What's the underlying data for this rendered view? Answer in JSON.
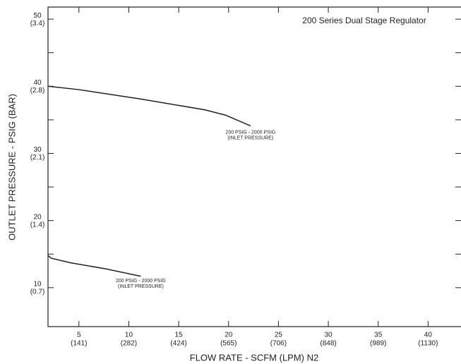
{
  "chart_data": {
    "type": "line",
    "title": "200 Series Dual Stage Regulator",
    "title_color": "#a51c4a",
    "x_label": "FLOW RATE - SCFM (LPM) N2",
    "y_label": "OUTLET PRESSURE - PSIG (BAR)",
    "xlim": [
      1.9,
      43.3
    ],
    "ylim": [
      4.2,
      51.8
    ],
    "xticks": [
      5,
      10,
      15,
      20,
      25,
      30,
      35,
      40
    ],
    "xtick_sublabels": [
      "(141)",
      "(282)",
      "(424)",
      "(565)",
      "(706)",
      "(848)",
      "(989)",
      "(1130)"
    ],
    "yticks": [
      10,
      20,
      30,
      40,
      50
    ],
    "ytick_sublabels": [
      "(0.7)",
      "(1.4)",
      "(2.1)",
      "(2.8)",
      "(3.4)"
    ],
    "yminor_ticks": [
      15,
      25,
      35,
      45
    ],
    "series": [
      {
        "color": "#231f20",
        "x": [
          1.9,
          5,
          11.2,
          17.6,
          19.7,
          22.2
        ],
        "values": [
          40,
          39.5,
          38.1,
          36.5,
          35.7,
          34.1
        ]
      },
      {
        "color": "#231f20",
        "x": [
          1.9,
          2.2,
          4.2,
          7.7,
          11.2
        ],
        "values": [
          14.8,
          14.4,
          13.7,
          12.8,
          11.7
        ]
      }
    ],
    "annotations": [
      {
        "text": "200 PSIG - 2000 PSIG",
        "subtext": "(INLET PRESSURE)",
        "x": 22.2,
        "y": 32.7
      },
      {
        "text": "200 PSIG - 2000 PSIG",
        "subtext": "(INLET PRESSURE)",
        "x": 11.2,
        "y": 10.6
      }
    ]
  }
}
